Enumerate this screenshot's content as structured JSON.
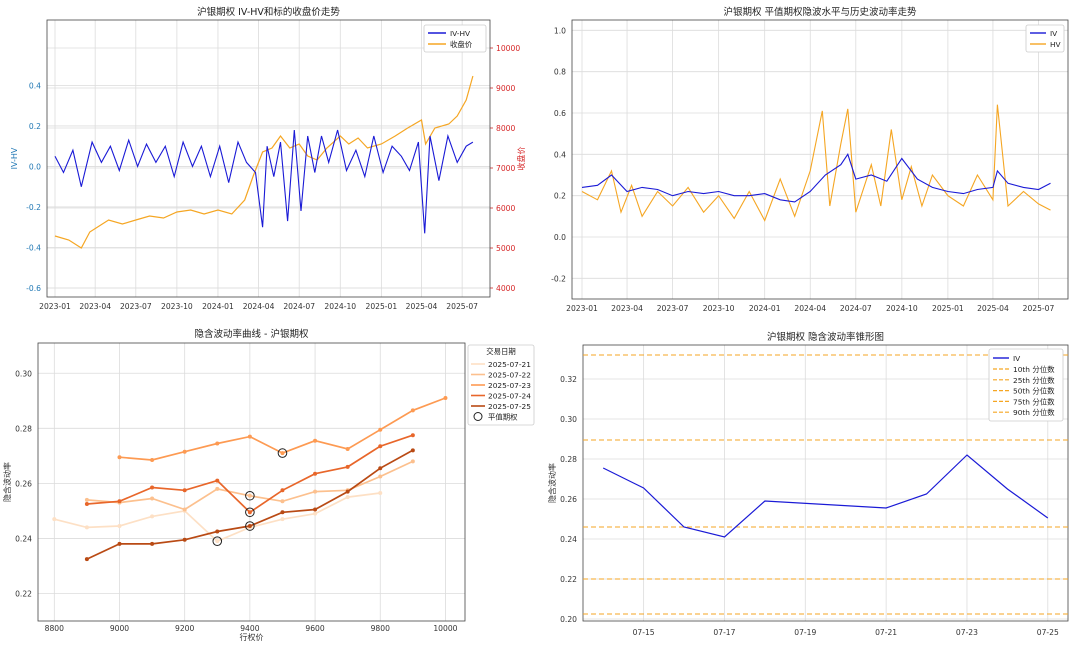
{
  "chart_data": [
    {
      "type": "line",
      "title": "沪银期权 IV-HV和标的收盘价走势",
      "xlabel": "",
      "ylabel": "IV-HV",
      "y2label": "收盘价",
      "xticks": [
        "2023-01",
        "2023-04",
        "2023-07",
        "2023-10",
        "2024-01",
        "2024-04",
        "2024-07",
        "2024-10",
        "2025-01",
        "2025-04",
        "2025-07"
      ],
      "yticks": [
        "-0.6",
        "-0.4",
        "-0.2",
        "0.0",
        "0.2",
        "0.4"
      ],
      "y2ticks": [
        "4000",
        "5000",
        "6000",
        "7000",
        "8000",
        "9000",
        "10000"
      ],
      "ylim": [
        -0.6,
        0.55
      ],
      "y2lim": [
        3900,
        10500
      ],
      "x_range": [
        "2023-01-01",
        "2025-08-01"
      ],
      "legend_position": "top-right",
      "colors": {
        "iv_hv": "#1a1ad6",
        "close": "#f5a623",
        "left_axis": "#1f77b4",
        "right_axis": "#d62728"
      },
      "series": [
        {
          "name": "IV-HV",
          "x": [
            "2023-01-01",
            "2023-01-20",
            "2023-02-10",
            "2023-03-01",
            "2023-03-25",
            "2023-04-15",
            "2023-05-05",
            "2023-05-25",
            "2023-06-15",
            "2023-07-05",
            "2023-07-25",
            "2023-08-15",
            "2023-09-05",
            "2023-09-25",
            "2023-10-15",
            "2023-11-05",
            "2023-11-25",
            "2023-12-15",
            "2024-01-05",
            "2024-01-25",
            "2024-02-15",
            "2024-03-05",
            "2024-03-25",
            "2024-04-10",
            "2024-04-20",
            "2024-05-05",
            "2024-05-20",
            "2024-06-05",
            "2024-06-20",
            "2024-07-05",
            "2024-07-20",
            "2024-08-05",
            "2024-08-20",
            "2024-09-05",
            "2024-09-25",
            "2024-10-15",
            "2024-11-05",
            "2024-11-25",
            "2024-12-15",
            "2025-01-05",
            "2025-01-25",
            "2025-02-15",
            "2025-03-05",
            "2025-03-25",
            "2025-04-08",
            "2025-04-20",
            "2025-05-10",
            "2025-05-30",
            "2025-06-20",
            "2025-07-10",
            "2025-07-25"
          ],
          "values": [
            0.05,
            -0.03,
            0.08,
            -0.1,
            0.12,
            0.02,
            0.1,
            -0.02,
            0.13,
            0.0,
            0.11,
            0.02,
            0.1,
            -0.05,
            0.12,
            0.0,
            0.1,
            -0.05,
            0.1,
            -0.08,
            0.12,
            0.02,
            -0.03,
            -0.3,
            0.1,
            -0.05,
            0.12,
            -0.27,
            0.18,
            -0.22,
            0.15,
            -0.03,
            0.15,
            0.02,
            0.18,
            -0.02,
            0.08,
            -0.05,
            0.15,
            -0.03,
            0.1,
            0.05,
            -0.02,
            0.12,
            -0.33,
            0.15,
            -0.07,
            0.15,
            0.02,
            0.1,
            0.12
          ]
        },
        {
          "name": "收盘价",
          "x": [
            "2023-01-01",
            "2023-02-01",
            "2023-03-01",
            "2023-03-20",
            "2023-04-10",
            "2023-05-01",
            "2023-06-01",
            "2023-07-01",
            "2023-08-01",
            "2023-09-01",
            "2023-10-01",
            "2023-11-01",
            "2023-12-01",
            "2024-01-01",
            "2024-02-01",
            "2024-03-01",
            "2024-03-20",
            "2024-04-10",
            "2024-05-01",
            "2024-05-20",
            "2024-06-10",
            "2024-07-01",
            "2024-07-20",
            "2024-08-10",
            "2024-09-01",
            "2024-10-01",
            "2024-10-20",
            "2024-11-10",
            "2024-12-01",
            "2025-01-01",
            "2025-02-01",
            "2025-03-01",
            "2025-04-01",
            "2025-04-10",
            "2025-05-01",
            "2025-06-01",
            "2025-06-20",
            "2025-07-10",
            "2025-07-25"
          ],
          "values": [
            5300,
            5200,
            5000,
            5400,
            5550,
            5700,
            5600,
            5700,
            5800,
            5750,
            5900,
            5950,
            5850,
            5950,
            5850,
            6200,
            6800,
            7400,
            7500,
            7800,
            7500,
            7600,
            7300,
            7200,
            7500,
            7800,
            7600,
            7750,
            7500,
            7600,
            7800,
            8000,
            8200,
            7600,
            8000,
            8100,
            8300,
            8700,
            9300
          ]
        }
      ]
    },
    {
      "type": "line",
      "title": "沪银期权 平值期权隐波水平与历史波动率走势",
      "xlabel": "",
      "ylabel": "",
      "xticks": [
        "2023-01",
        "2023-04",
        "2023-07",
        "2023-10",
        "2024-01",
        "2024-04",
        "2024-07",
        "2024-10",
        "2025-01",
        "2025-04",
        "2025-07"
      ],
      "yticks": [
        "-0.2",
        "0.0",
        "0.2",
        "0.4",
        "0.6",
        "0.8",
        "1.0"
      ],
      "ylim": [
        -0.3,
        1.05
      ],
      "x_range": [
        "2023-01-01",
        "2025-08-01"
      ],
      "legend_position": "top-right",
      "series": [
        {
          "name": "IV",
          "x": [
            "2023-01-01",
            "2023-02-01",
            "2023-03-01",
            "2023-04-01",
            "2023-05-01",
            "2023-06-01",
            "2023-07-01",
            "2023-08-01",
            "2023-09-01",
            "2023-10-01",
            "2023-11-01",
            "2023-12-01",
            "2024-01-01",
            "2024-02-01",
            "2024-03-01",
            "2024-04-01",
            "2024-05-01",
            "2024-06-01",
            "2024-06-15",
            "2024-07-01",
            "2024-08-01",
            "2024-09-01",
            "2024-10-01",
            "2024-11-01",
            "2024-12-01",
            "2025-01-01",
            "2025-02-01",
            "2025-03-01",
            "2025-04-01",
            "2025-04-10",
            "2025-05-01",
            "2025-06-01",
            "2025-07-01",
            "2025-07-25"
          ],
          "values": [
            0.24,
            0.25,
            0.3,
            0.22,
            0.24,
            0.23,
            0.2,
            0.22,
            0.21,
            0.22,
            0.2,
            0.2,
            0.21,
            0.18,
            0.17,
            0.22,
            0.3,
            0.35,
            0.4,
            0.28,
            0.3,
            0.27,
            0.38,
            0.28,
            0.24,
            0.22,
            0.21,
            0.23,
            0.24,
            0.32,
            0.26,
            0.24,
            0.23,
            0.26
          ]
        },
        {
          "name": "HV",
          "x": [
            "2023-01-01",
            "2023-02-01",
            "2023-03-01",
            "2023-03-20",
            "2023-04-10",
            "2023-05-01",
            "2023-06-01",
            "2023-07-01",
            "2023-08-01",
            "2023-09-01",
            "2023-10-01",
            "2023-11-01",
            "2023-12-01",
            "2024-01-01",
            "2024-02-01",
            "2024-03-01",
            "2024-04-01",
            "2024-04-25",
            "2024-05-10",
            "2024-06-01",
            "2024-06-15",
            "2024-07-01",
            "2024-08-01",
            "2024-08-20",
            "2024-09-10",
            "2024-10-01",
            "2024-10-20",
            "2024-11-10",
            "2024-12-01",
            "2025-01-01",
            "2025-02-01",
            "2025-03-01",
            "2025-04-01",
            "2025-04-10",
            "2025-05-01",
            "2025-06-01",
            "2025-07-01",
            "2025-07-25"
          ],
          "values": [
            0.22,
            0.18,
            0.32,
            0.12,
            0.25,
            0.1,
            0.22,
            0.15,
            0.24,
            0.12,
            0.2,
            0.09,
            0.22,
            0.08,
            0.28,
            0.1,
            0.32,
            0.61,
            0.15,
            0.45,
            0.62,
            0.12,
            0.35,
            0.15,
            0.52,
            0.18,
            0.34,
            0.15,
            0.3,
            0.2,
            0.15,
            0.3,
            0.18,
            0.64,
            0.15,
            0.22,
            0.16,
            0.13
          ]
        }
      ]
    },
    {
      "type": "line",
      "title": "隐含波动率曲线 - 沪银期权",
      "xlabel": "行权价",
      "ylabel": "隐含波动率",
      "xticks": [
        "8800",
        "9000",
        "9200",
        "9400",
        "9600",
        "9800",
        "10000"
      ],
      "yticks": [
        "0.22",
        "0.24",
        "0.26",
        "0.28",
        "0.30"
      ],
      "xlim": [
        8750,
        10060
      ],
      "ylim": [
        0.21,
        0.311
      ],
      "legend_title": "交易日期",
      "legend_position": "top-right",
      "marker_label": "平值期权",
      "series": [
        {
          "name": "2025-07-21",
          "color": "#fde0c5",
          "x": [
            8800,
            8900,
            9000,
            9100,
            9200,
            9300,
            9400,
            9500,
            9600,
            9700,
            9800
          ],
          "values": [
            0.247,
            0.244,
            0.2445,
            0.248,
            0.25,
            0.239,
            0.244,
            0.247,
            0.249,
            0.255,
            0.2565
          ]
        },
        {
          "name": "2025-07-22",
          "color": "#fcc08e",
          "x": [
            8900,
            9000,
            9100,
            9200,
            9300,
            9400,
            9500,
            9600,
            9700,
            9800,
            9900
          ],
          "values": [
            0.254,
            0.253,
            0.2545,
            0.2505,
            0.258,
            0.2555,
            0.2535,
            0.257,
            0.2575,
            0.2625,
            0.268
          ]
        },
        {
          "name": "2025-07-23",
          "color": "#fd9a52",
          "x": [
            9000,
            9100,
            9200,
            9300,
            9400,
            9500,
            9600,
            9700,
            9800,
            9900,
            10000
          ],
          "values": [
            0.2695,
            0.2685,
            0.2715,
            0.2745,
            0.277,
            0.271,
            0.2755,
            0.2725,
            0.2795,
            0.2865,
            0.291
          ]
        },
        {
          "name": "2025-07-24",
          "color": "#e8662a",
          "x": [
            8900,
            9000,
            9100,
            9200,
            9300,
            9400,
            9500,
            9600,
            9700,
            9800,
            9900
          ],
          "values": [
            0.2525,
            0.2535,
            0.2585,
            0.2575,
            0.261,
            0.2495,
            0.2575,
            0.2635,
            0.266,
            0.2735,
            0.2775
          ]
        },
        {
          "name": "2025-07-25",
          "color": "#b94a14",
          "x": [
            8900,
            9000,
            9100,
            9200,
            9300,
            9400,
            9500,
            9600,
            9700,
            9800,
            9900
          ],
          "values": [
            0.2325,
            0.238,
            0.238,
            0.2395,
            0.2425,
            0.2445,
            0.2495,
            0.2505,
            0.257,
            0.2655,
            0.272
          ]
        }
      ],
      "atm_points": [
        {
          "x": 9300,
          "y": 0.239
        },
        {
          "x": 9400,
          "y": 0.2555
        },
        {
          "x": 9500,
          "y": 0.271
        },
        {
          "x": 9400,
          "y": 0.2495
        },
        {
          "x": 9400,
          "y": 0.2445
        }
      ]
    },
    {
      "type": "line",
      "title": "沪银期权 隐含波动率锥形图",
      "xlabel": "",
      "ylabel": "隐含波动率",
      "xticks": [
        "07-15",
        "07-17",
        "07-19",
        "07-21",
        "07-23",
        "07-25"
      ],
      "yticks": [
        "0.20",
        "0.22",
        "0.24",
        "0.26",
        "0.28",
        "0.30",
        "0.32"
      ],
      "xlim": [
        "07-13T12",
        "07-25T12"
      ],
      "ylim": [
        0.199,
        0.337
      ],
      "legend_position": "top-right",
      "series": [
        {
          "name": "IV",
          "color": "#1a1ad6",
          "x": [
            "07-14",
            "07-15",
            "07-16",
            "07-17",
            "07-18",
            "07-21",
            "07-22",
            "07-23",
            "07-24",
            "07-25"
          ],
          "values": [
            0.2755,
            0.2655,
            0.246,
            0.241,
            0.259,
            0.2555,
            0.2625,
            0.282,
            0.265,
            0.2505
          ]
        }
      ],
      "percentiles": [
        {
          "name": "10th 分位数",
          "value": 0.2025
        },
        {
          "name": "25th 分位数",
          "value": 0.22
        },
        {
          "name": "50th 分位数",
          "value": 0.246
        },
        {
          "name": "75th 分位数",
          "value": 0.2895
        },
        {
          "name": "90th 分位数",
          "value": 0.332
        }
      ]
    }
  ]
}
